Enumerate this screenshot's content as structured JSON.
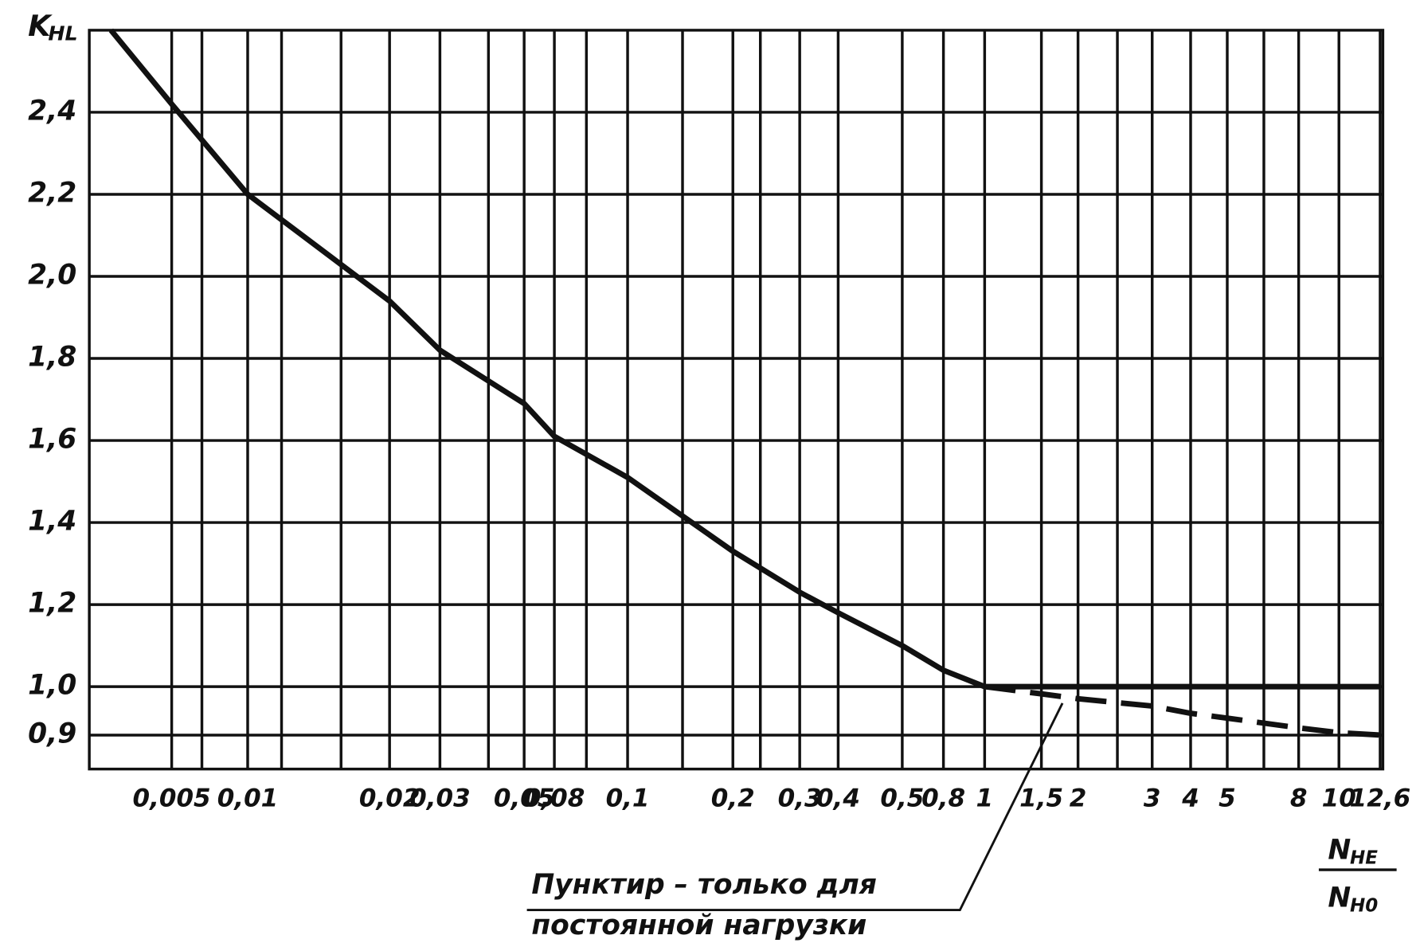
{
  "chart_data": {
    "type": "line",
    "ylabel": "K",
    "ylabel_sub": "HL",
    "xlabel_num": "N",
    "xlabel_num_sub": "HE",
    "xlabel_den": "N",
    "xlabel_den_sub": "H0",
    "annotation": [
      "Пунктир – только для",
      "постоянной нагрузки"
    ],
    "grid": true,
    "xscale": "log",
    "xlim": [
      0.0025,
      12.6
    ],
    "ylim": [
      0.83,
      2.6
    ],
    "xticks": [
      {
        "value": 0.005,
        "label": "0,005"
      },
      {
        "value": 0.01,
        "label": "0,01"
      },
      {
        "value": 0.02,
        "label": "0,02"
      },
      {
        "value": 0.03,
        "label": "0,03"
      },
      {
        "value": 0.05,
        "label": "0,05"
      },
      {
        "value": 0.08,
        "label": "0,08"
      },
      {
        "value": 0.1,
        "label": "0,1"
      },
      {
        "value": 0.2,
        "label": "0,2"
      },
      {
        "value": 0.3,
        "label": "0,3"
      },
      {
        "value": 0.4,
        "label": "0,4"
      },
      {
        "value": 0.5,
        "label": "0,5"
      },
      {
        "value": 0.8,
        "label": "0,8"
      },
      1,
      {
        "value": 1.5,
        "label": "1,5"
      },
      2,
      3,
      4,
      5,
      8,
      10,
      {
        "value": 12.6,
        "label": "12,6"
      }
    ],
    "yticks": [
      {
        "value": 0.9,
        "label": "0,9"
      },
      {
        "value": 1.0,
        "label": "1,0"
      },
      {
        "value": 1.2,
        "label": "1,2"
      },
      {
        "value": 1.4,
        "label": "1,4"
      },
      {
        "value": 1.6,
        "label": "1,6"
      },
      {
        "value": 1.8,
        "label": "1,8"
      },
      {
        "value": 2.0,
        "label": "2,0"
      },
      {
        "value": 2.2,
        "label": "2,2"
      },
      {
        "value": 2.4,
        "label": "2,4"
      }
    ],
    "x": [
      0.003,
      0.005,
      0.01,
      0.02,
      0.03,
      0.05,
      0.08,
      0.1,
      0.2,
      0.3,
      0.4,
      0.5,
      0.8,
      1,
      1.5,
      2,
      3,
      4,
      5,
      8,
      10,
      12.6
    ],
    "series": [
      {
        "color": "#111111",
        "dashed": false,
        "values": [
          2.6,
          2.42,
          2.2,
          1.94,
          1.82,
          1.69,
          1.61,
          1.51,
          1.33,
          1.23,
          1.18,
          1.1,
          1.04,
          1.0,
          1.0,
          1.0,
          1.0,
          1.0,
          1.0,
          1.0,
          1.0,
          1.0
        ]
      },
      {
        "color": "#111111",
        "dashed": true,
        "values": [
          null,
          null,
          null,
          null,
          null,
          null,
          null,
          null,
          null,
          null,
          null,
          null,
          null,
          1.0,
          0.985,
          0.975,
          0.96,
          0.945,
          0.935,
          0.915,
          0.905,
          0.9
        ]
      }
    ]
  }
}
